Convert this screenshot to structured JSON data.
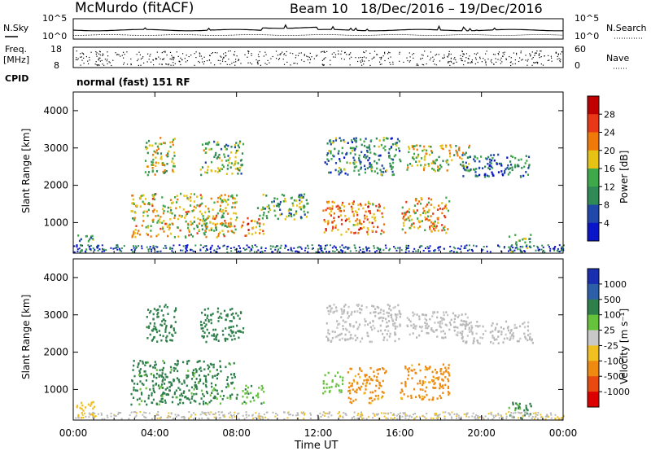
{
  "header": {
    "station_title": "McMurdo (fitACF)",
    "beam_title": "Beam 10",
    "date_range": "18/Dec/2016 – 19/Dec/2016",
    "nsky_label": "N.Sky",
    "nsearch_label": "N.Search",
    "freq_label": "Freq.",
    "freq_unit": "[MHz]",
    "nave_label": "Nave",
    "cpid_label": "CPID",
    "cpid_value": "normal (fast) 151 RF",
    "noise_left_ticks": [
      "10^5",
      "10^0"
    ],
    "noise_right_ticks": [
      "10^5",
      "10^0"
    ],
    "freq_ticks": [
      "18",
      "8"
    ],
    "nave_ticks": [
      "60",
      "0"
    ]
  },
  "colors": {
    "power_scale": [
      "#0a14c8",
      "#1f48a8",
      "#2f8a55",
      "#3fa84a",
      "#e6c215",
      "#f07a08",
      "#e83818",
      "#c00000"
    ],
    "velocity_scale": [
      "#1a2fb0",
      "#2c5fa8",
      "#2e7f4a",
      "#66c23a",
      "#c8c8c8",
      "#f0c020",
      "#ee8a10",
      "#e84a10",
      "#dc0000"
    ],
    "ground_scatter": "#b8b8b8"
  },
  "chart_data": [
    {
      "type": "heatmap",
      "panel": "power",
      "ylabel": "Slant Range [km]",
      "xlabel": "",
      "colorbar_label": "Power [dB]",
      "colorbar_ticks": [
        "28",
        "24",
        "20",
        "16",
        "12",
        "8",
        "4"
      ],
      "xlim": [
        "00:00",
        "00:00"
      ],
      "ylim": [
        180,
        4500
      ],
      "y_ticks": [
        "4000",
        "3000",
        "2000",
        "1000"
      ],
      "x_ticks": [
        "00:00",
        "04:00",
        "08:00",
        "12:00",
        "16:00",
        "20:00",
        "00:00"
      ],
      "regions": [
        {
          "t0": 3.5,
          "t1": 5.0,
          "r0": 2300,
          "r1": 3300,
          "db": 16
        },
        {
          "t0": 6.2,
          "t1": 8.3,
          "r0": 2300,
          "r1": 3200,
          "db": 14
        },
        {
          "t0": 2.8,
          "t1": 8.0,
          "r0": 620,
          "r1": 1800,
          "db": 18
        },
        {
          "t0": 8.2,
          "t1": 9.3,
          "r0": 650,
          "r1": 1150,
          "db": 22
        },
        {
          "t0": 9.0,
          "t1": 11.5,
          "r0": 1100,
          "r1": 1800,
          "db": 12
        },
        {
          "t0": 12.2,
          "t1": 15.2,
          "r0": 700,
          "r1": 1600,
          "db": 22
        },
        {
          "t0": 16.0,
          "t1": 18.4,
          "r0": 750,
          "r1": 1700,
          "db": 20
        },
        {
          "t0": 16.3,
          "t1": 19.4,
          "r0": 2400,
          "r1": 3100,
          "db": 16
        },
        {
          "t0": 12.3,
          "t1": 16.0,
          "r0": 2300,
          "r1": 3300,
          "db": 10
        },
        {
          "t0": 19.0,
          "t1": 22.5,
          "r0": 2250,
          "r1": 2850,
          "db": 8
        },
        {
          "t0": 21.3,
          "t1": 22.4,
          "r0": 250,
          "r1": 700,
          "db": 12
        },
        {
          "t0": 0.1,
          "t1": 1.0,
          "r0": 250,
          "r1": 700,
          "db": 10
        }
      ]
    },
    {
      "type": "heatmap",
      "panel": "velocity",
      "ylabel": "Slant Range [km]",
      "xlabel": "Time UT",
      "colorbar_label": "Velocity [m s⁻¹]",
      "colorbar_ticks": [
        "1000",
        "500",
        "100",
        "25",
        "-25",
        "-100",
        "-500",
        "-1000"
      ],
      "xlim": [
        "00:00",
        "00:00"
      ],
      "ylim": [
        180,
        4500
      ],
      "y_ticks": [
        "4000",
        "3000",
        "2000",
        "1000"
      ],
      "x_ticks": [
        "00:00",
        "04:00",
        "08:00",
        "12:00",
        "16:00",
        "20:00",
        "00:00"
      ],
      "regions": [
        {
          "t0": 3.5,
          "t1": 5.0,
          "r0": 2300,
          "r1": 3300,
          "v": 300
        },
        {
          "t0": 6.2,
          "t1": 8.3,
          "r0": 2300,
          "r1": 3200,
          "v": 200
        },
        {
          "t0": 2.8,
          "t1": 8.0,
          "r0": 620,
          "r1": 1800,
          "v": 150
        },
        {
          "t0": 8.2,
          "t1": 9.3,
          "r0": 650,
          "r1": 1150,
          "v": 80
        },
        {
          "t0": 12.2,
          "t1": 13.2,
          "r0": 900,
          "r1": 1500,
          "v": 60
        },
        {
          "t0": 13.4,
          "t1": 15.3,
          "r0": 650,
          "r1": 1600,
          "v": -150
        },
        {
          "t0": 16.0,
          "t1": 18.4,
          "r0": 750,
          "r1": 1700,
          "v": -160
        },
        {
          "t0": 16.3,
          "t1": 19.4,
          "r0": 2400,
          "r1": 3100,
          "v": 0
        },
        {
          "t0": 12.3,
          "t1": 16.0,
          "r0": 2300,
          "r1": 3300,
          "v": 0
        },
        {
          "t0": 19.0,
          "t1": 22.5,
          "r0": 2250,
          "r1": 2850,
          "v": 0
        },
        {
          "t0": 21.3,
          "t1": 22.4,
          "r0": 250,
          "r1": 700,
          "v": 120
        },
        {
          "t0": 0.1,
          "t1": 1.0,
          "r0": 250,
          "r1": 700,
          "v": -60
        },
        {
          "t0": 22.4,
          "t1": 24.0,
          "r0": 200,
          "r1": 320,
          "v": -40
        }
      ]
    }
  ]
}
